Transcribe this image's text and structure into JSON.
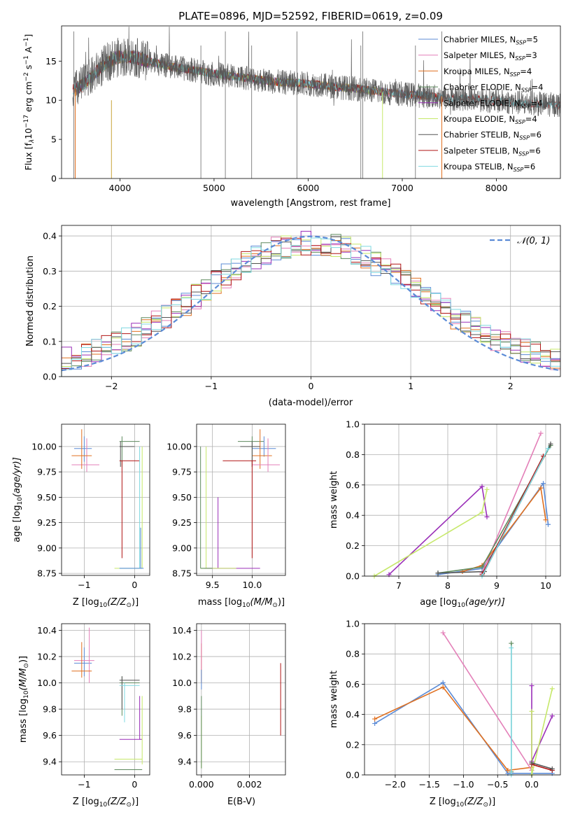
{
  "figure_title": "PLATE=0896, MJD=52592, FIBERID=0619, z=0.09",
  "colors": {
    "Chabrier MILES": "#5b8bd6",
    "Salpeter MILES": "#e37fb8",
    "Kroupa MILES": "#c8a43a",
    "Chabrier ELODIE": "#5e8a5e",
    "Salpeter ELODIE": "#9a2fb8",
    "Kroupa ELODIE": "#c6e86a",
    "Chabrier STELIB": "#555555",
    "Salpeter STELIB": "#b01515",
    "Kroupa STELIB": "#7ed8e0",
    "orange": "#e07020",
    "gauss": "#5b8bd6",
    "grid": "#b0b0b0"
  },
  "chart_data": [
    {
      "type": "line",
      "title": "PLATE=0896, MJD=52592, FIBERID=0619, z=0.09",
      "xlabel": "wavelength [Angstrom, rest frame]",
      "ylabel_main": "Flux [f",
      "ylabel_rest": "10",
      "ylabel_unit": " erg cm",
      "ylabel_s": " s",
      "ylabel_a": " A",
      "xlim": [
        3380,
        8680
      ],
      "ylim": [
        0,
        19.5
      ],
      "xticks": [
        "4000",
        "5000",
        "6000",
        "7000",
        "8000"
      ],
      "yticks": [
        "0",
        "5",
        "10",
        "15"
      ],
      "legend": [
        {
          "label": "Chabrier MILES, N",
          "n": "5"
        },
        {
          "label": "Salpeter MILES, N",
          "n": "3"
        },
        {
          "label": "Kroupa MILES, N",
          "n": "4"
        },
        {
          "label": "Chabrier ELODIE, N",
          "n": "4"
        },
        {
          "label": "Salpeter ELODIE, N",
          "n": "4"
        },
        {
          "label": "Kroupa ELODIE, N",
          "n": "4"
        },
        {
          "label": "Chabrier STELIB, N",
          "n": "6"
        },
        {
          "label": "Salpeter STELIB, N",
          "n": "6"
        },
        {
          "label": "Kroupa STELIB, N",
          "n": "6"
        }
      ],
      "legend_sub": "SSP",
      "envelope": {
        "wavelength": [
          3480,
          3560,
          3650,
          3750,
          3850,
          3950,
          4050,
          4150,
          4300,
          4500,
          4700,
          4900,
          5100,
          5300,
          5500,
          5700,
          5900,
          6100,
          6300,
          6500,
          6700,
          6900,
          7100,
          7300,
          7500,
          7700,
          7900,
          8100,
          8300,
          8500,
          8680
        ],
        "flux": [
          11.0,
          11.6,
          12.4,
          13.6,
          14.7,
          15.4,
          15.6,
          15.5,
          15.0,
          14.4,
          14.0,
          13.6,
          13.2,
          12.9,
          12.6,
          12.3,
          12.2,
          12.0,
          11.7,
          11.5,
          11.2,
          10.9,
          10.7,
          10.5,
          10.2,
          10.2,
          10.0,
          9.8,
          9.6,
          9.5,
          9.4
        ]
      }
    },
    {
      "type": "histogram",
      "xlabel": "(data-model)/error",
      "ylabel": "Normed distribution",
      "xlim": [
        -2.5,
        2.5
      ],
      "ylim": [
        0,
        0.43
      ],
      "xticks": [
        "−2",
        "−1",
        "0",
        "1",
        "2"
      ],
      "yticks": [
        "0.0",
        "0.1",
        "0.2",
        "0.3",
        "0.4"
      ],
      "legend": "𝒩(0, 1)",
      "bin_width": 0.1,
      "bin_start": -2.5
    },
    {
      "type": "errorbar",
      "xlabel": "Z [log",
      "xlabel_tail": "(Z/Z",
      "ylabel": "age  [log",
      "ylabel_tail": "(age/yr)]",
      "xlim": [
        -1.45,
        0.3
      ],
      "ylim": [
        8.73,
        10.22
      ],
      "xticks": [
        "−1",
        "0"
      ],
      "yticks": [
        "8.75",
        "9.00",
        "9.25",
        "9.50",
        "9.75",
        "10.00"
      ]
    },
    {
      "type": "errorbar",
      "xlabel": "mass [log",
      "xlabel_tail": "(M/M",
      "xlim": [
        9.3,
        10.42
      ],
      "ylim": [
        8.73,
        10.22
      ],
      "xticks": [
        "9.5",
        "10.0"
      ],
      "yticks": [
        "8.75",
        "9.00",
        "9.25",
        "9.50",
        "9.75",
        "10.00"
      ]
    },
    {
      "type": "line",
      "xlabel": "age  [log",
      "xlabel_tail": "(age/yr)]",
      "ylabel": "mass weight",
      "xlim": [
        6.3,
        10.3
      ],
      "ylim": [
        0,
        1
      ],
      "xticks": [
        "7",
        "8",
        "9",
        "10"
      ],
      "yticks": [
        "0.0",
        "0.2",
        "0.4",
        "0.6",
        "0.8",
        "1.0"
      ]
    },
    {
      "type": "errorbar",
      "xlabel": "Z [log",
      "xlabel_tail": "(Z/Z",
      "ylabel": "mass [log",
      "ylabel_tail": "(M/M",
      "xlim": [
        -1.45,
        0.3
      ],
      "ylim": [
        9.3,
        10.45
      ],
      "xticks": [
        "−1",
        "0"
      ],
      "yticks": [
        "9.4",
        "9.6",
        "9.8",
        "10.0",
        "10.2",
        "10.4"
      ]
    },
    {
      "type": "errorbar",
      "xlabel": "E(B-V)",
      "xlim": [
        -0.0002,
        0.0035
      ],
      "ylim": [
        9.3,
        10.45
      ],
      "xticks": [
        "0.000",
        "0.002"
      ],
      "yticks": [
        "9.4",
        "9.6",
        "9.8",
        "10.0",
        "10.2",
        "10.4"
      ]
    },
    {
      "type": "line",
      "xlabel": "Z [log",
      "xlabel_tail": "(Z/Z",
      "ylabel": "mass weight",
      "xlim": [
        -2.45,
        0.42
      ],
      "ylim": [
        0,
        1
      ],
      "xticks": [
        "−2.0",
        "−1.5",
        "−1.0",
        "−0.5",
        "0.0"
      ],
      "yticks": [
        "0.0",
        "0.2",
        "0.4",
        "0.6",
        "0.8",
        "1.0"
      ]
    }
  ],
  "age_weight_series": [
    {
      "name": "Chabrier MILES",
      "pts": [
        [
          7.8,
          0.01
        ],
        [
          8.7,
          0.05
        ],
        [
          9.95,
          0.61
        ],
        [
          10.05,
          0.34
        ]
      ]
    },
    {
      "name": "Salpeter MILES",
      "pts": [
        [
          8.7,
          0.02
        ],
        [
          9.9,
          0.94
        ]
      ]
    },
    {
      "name": "orange",
      "pts": [
        [
          8.3,
          0.03
        ],
        [
          8.7,
          0.07
        ],
        [
          9.9,
          0.58
        ],
        [
          10.0,
          0.37
        ]
      ]
    },
    {
      "name": "Chabrier ELODIE",
      "pts": [
        [
          7.8,
          0.02
        ],
        [
          8.7,
          0.06
        ],
        [
          10.1,
          0.86
        ]
      ]
    },
    {
      "name": "Salpeter ELODIE",
      "pts": [
        [
          6.8,
          0.01
        ],
        [
          8.7,
          0.59
        ],
        [
          8.8,
          0.39
        ]
      ]
    },
    {
      "name": "Kroupa ELODIE",
      "pts": [
        [
          6.5,
          0.0
        ],
        [
          8.7,
          0.42
        ],
        [
          8.8,
          0.57
        ]
      ]
    },
    {
      "name": "Chabrier STELIB",
      "pts": [
        [
          7.8,
          0.02
        ],
        [
          8.75,
          0.03
        ],
        [
          10.1,
          0.87
        ]
      ]
    },
    {
      "name": "Salpeter STELIB",
      "pts": [
        [
          8.7,
          0.01
        ],
        [
          9.95,
          0.79
        ]
      ]
    },
    {
      "name": "Kroupa STELIB",
      "pts": [
        [
          8.7,
          0.0
        ],
        [
          10.05,
          0.84
        ]
      ]
    }
  ],
  "z_weight_series": [
    {
      "name": "Chabrier MILES",
      "pts": [
        [
          -2.3,
          0.34
        ],
        [
          -1.3,
          0.61
        ],
        [
          -0.35,
          0.01
        ],
        [
          0.3,
          0.01
        ]
      ]
    },
    {
      "name": "orange",
      "pts": [
        [
          -2.3,
          0.37
        ],
        [
          -1.3,
          0.58
        ],
        [
          -0.35,
          0.03
        ],
        [
          0.0,
          0.05
        ]
      ]
    },
    {
      "name": "Salpeter MILES",
      "pts": [
        [
          -1.3,
          0.94
        ],
        [
          0.0,
          0.03
        ]
      ]
    },
    {
      "name": "Chabrier ELODIE",
      "pts": [
        [
          -0.3,
          0.87
        ],
        [
          -0.3,
          0.02
        ]
      ]
    },
    {
      "name": "Kroupa STELIB",
      "pts": [
        [
          -0.3,
          0.84
        ],
        [
          -0.3,
          0.0
        ]
      ]
    },
    {
      "name": "Salpeter ELODIE",
      "pts": [
        [
          0.0,
          0.59
        ],
        [
          0.0,
          0.09
        ],
        [
          0.3,
          0.39
        ]
      ]
    },
    {
      "name": "Kroupa ELODIE",
      "pts": [
        [
          0.0,
          0.42
        ],
        [
          0.0,
          0.0
        ],
        [
          0.3,
          0.57
        ]
      ]
    },
    {
      "name": "Salpeter STELIB",
      "pts": [
        [
          0.0,
          0.07
        ],
        [
          0.3,
          0.03
        ]
      ]
    },
    {
      "name": "Chabrier STELIB",
      "pts": [
        [
          0.0,
          0.08
        ],
        [
          0.3,
          0.04
        ]
      ]
    }
  ],
  "age_z_points": [
    {
      "c": "Chabrier MILES",
      "x": -1.0,
      "y": 9.98,
      "xe": [
        -1.2,
        -0.85
      ],
      "ye": [
        9.85,
        10.1
      ]
    },
    {
      "c": "Salpeter MILES",
      "x": -0.95,
      "y": 9.82,
      "xe": [
        -1.25,
        -0.7
      ],
      "ye": [
        9.75,
        10.08
      ]
    },
    {
      "c": "orange",
      "x": -1.05,
      "y": 9.91,
      "xe": [
        -1.25,
        -0.85
      ],
      "ye": [
        9.78,
        10.17
      ]
    },
    {
      "c": "Chabrier ELODIE",
      "x": -0.25,
      "y": 10.05,
      "xe": [
        -0.3,
        0.1
      ],
      "ye": [
        9.8,
        10.1
      ]
    },
    {
      "c": "Chabrier STELIB",
      "x": -0.28,
      "y": 10.0,
      "xe": [
        -0.3,
        0.0
      ],
      "ye": [
        9.8,
        10.05
      ]
    },
    {
      "c": "Salpeter STELIB",
      "x": -0.25,
      "y": 9.86,
      "xe": [
        -0.3,
        0.1
      ],
      "ye": [
        8.9,
        9.86
      ]
    },
    {
      "c": "Kroupa ELODIE",
      "x": 0.15,
      "y": 8.8,
      "xe": [
        -0.4,
        0.15
      ],
      "ye": [
        8.8,
        10.0
      ]
    },
    {
      "c": "Kroupa STELIB",
      "x": 0.1,
      "y": 8.8,
      "xe": [
        -0.3,
        0.15
      ],
      "ye": [
        8.8,
        10.0
      ]
    },
    {
      "c": "Chabrier MILES",
      "x": 0.12,
      "y": 8.8,
      "xe": [
        -0.3,
        0.18
      ],
      "ye": [
        8.8,
        9.2
      ]
    }
  ],
  "age_mass_points": [
    {
      "c": "Chabrier ELODIE",
      "x": 10.0,
      "y": 10.05,
      "xe": [
        9.82,
        10.15
      ],
      "ye": [
        9.8,
        10.1
      ]
    },
    {
      "c": "Chabrier MILES",
      "x": 10.15,
      "y": 9.98,
      "xe": [
        10.0,
        10.3
      ],
      "ye": [
        9.9,
        10.1
      ]
    },
    {
      "c": "orange",
      "x": 10.1,
      "y": 9.91,
      "xe": [
        10.0,
        10.25
      ],
      "ye": [
        9.78,
        10.17
      ]
    },
    {
      "c": "Salpeter MILES",
      "x": 10.2,
      "y": 9.82,
      "xe": [
        10.0,
        10.35
      ],
      "ye": [
        9.75,
        10.08
      ]
    },
    {
      "c": "Chabrier STELIB",
      "x": 10.0,
      "y": 10.0,
      "xe": [
        9.85,
        10.1
      ],
      "ye": [
        9.8,
        10.05
      ]
    },
    {
      "c": "Salpeter STELIB",
      "x": 10.0,
      "y": 9.86,
      "xe": [
        9.63,
        10.05
      ],
      "ye": [
        8.9,
        9.86
      ]
    },
    {
      "c": "Salpeter ELODIE",
      "x": 9.57,
      "y": 8.8,
      "xe": [
        9.4,
        10.1
      ],
      "ye": [
        8.8,
        9.5
      ]
    },
    {
      "c": "Kroupa ELODIE",
      "x": 9.42,
      "y": 8.8,
      "xe": [
        9.35,
        9.8
      ],
      "ye": [
        8.8,
        10.0
      ]
    },
    {
      "c": "Chabrier ELODIE",
      "x": 9.35,
      "y": 8.8,
      "xe": [
        9.35,
        9.5
      ],
      "ye": [
        8.8,
        10.0
      ]
    }
  ],
  "mass_z_points": [
    {
      "c": "Chabrier MILES",
      "x": -1.0,
      "y": 10.15,
      "xe": [
        -1.2,
        -0.85
      ],
      "ye": [
        10.05,
        10.27
      ]
    },
    {
      "c": "Salpeter MILES",
      "x": -0.9,
      "y": 10.17,
      "xe": [
        -1.2,
        -0.8
      ],
      "ye": [
        10.0,
        10.42
      ]
    },
    {
      "c": "orange",
      "x": -1.05,
      "y": 10.09,
      "xe": [
        -1.25,
        -0.85
      ],
      "ye": [
        10.04,
        10.31
      ]
    },
    {
      "c": "Chabrier ELODIE",
      "x": -0.25,
      "y": 10.0,
      "xe": [
        -0.3,
        0.1
      ],
      "ye": [
        9.75,
        10.05
      ]
    },
    {
      "c": "Chabrier STELIB",
      "x": -0.25,
      "y": 10.02,
      "xe": [
        -0.3,
        0.1
      ],
      "ye": [
        9.8,
        10.05
      ]
    },
    {
      "c": "Kroupa STELIB",
      "x": -0.2,
      "y": 9.98,
      "xe": [
        -0.3,
        0.1
      ],
      "ye": [
        9.7,
        10.0
      ]
    },
    {
      "c": "Salpeter ELODIE",
      "x": 0.1,
      "y": 9.57,
      "xe": [
        -0.3,
        0.15
      ],
      "ye": [
        9.57,
        9.9
      ]
    },
    {
      "c": "Kroupa ELODIE",
      "x": 0.15,
      "y": 9.42,
      "xe": [
        -0.4,
        0.15
      ],
      "ye": [
        9.38,
        9.9
      ]
    },
    {
      "c": "Chabrier ELODIE",
      "x": 0.1,
      "y": 9.34,
      "xe": [
        -0.4,
        0.15
      ],
      "ye": [
        9.34,
        9.34
      ]
    }
  ],
  "mass_ebv_points": [
    {
      "c": "orange",
      "x": 0.0,
      "y": 10.15,
      "ye": [
        10.0,
        10.3
      ]
    },
    {
      "c": "Salpeter MILES",
      "x": 0.0,
      "y": 10.2,
      "ye": [
        10.1,
        10.4
      ]
    },
    {
      "c": "Chabrier MILES",
      "x": 0.0,
      "y": 10.05,
      "ye": [
        9.95,
        10.1
      ]
    },
    {
      "c": "Kroupa ELODIE",
      "x": 0.0,
      "y": 9.5,
      "ye": [
        9.35,
        9.75
      ]
    },
    {
      "c": "Chabrier ELODIE",
      "x": 0.0,
      "y": 9.5,
      "ye": [
        9.35,
        9.9
      ]
    },
    {
      "c": "Salpeter STELIB",
      "x": 0.0033,
      "y": 9.85,
      "ye": [
        9.6,
        10.15
      ]
    }
  ]
}
